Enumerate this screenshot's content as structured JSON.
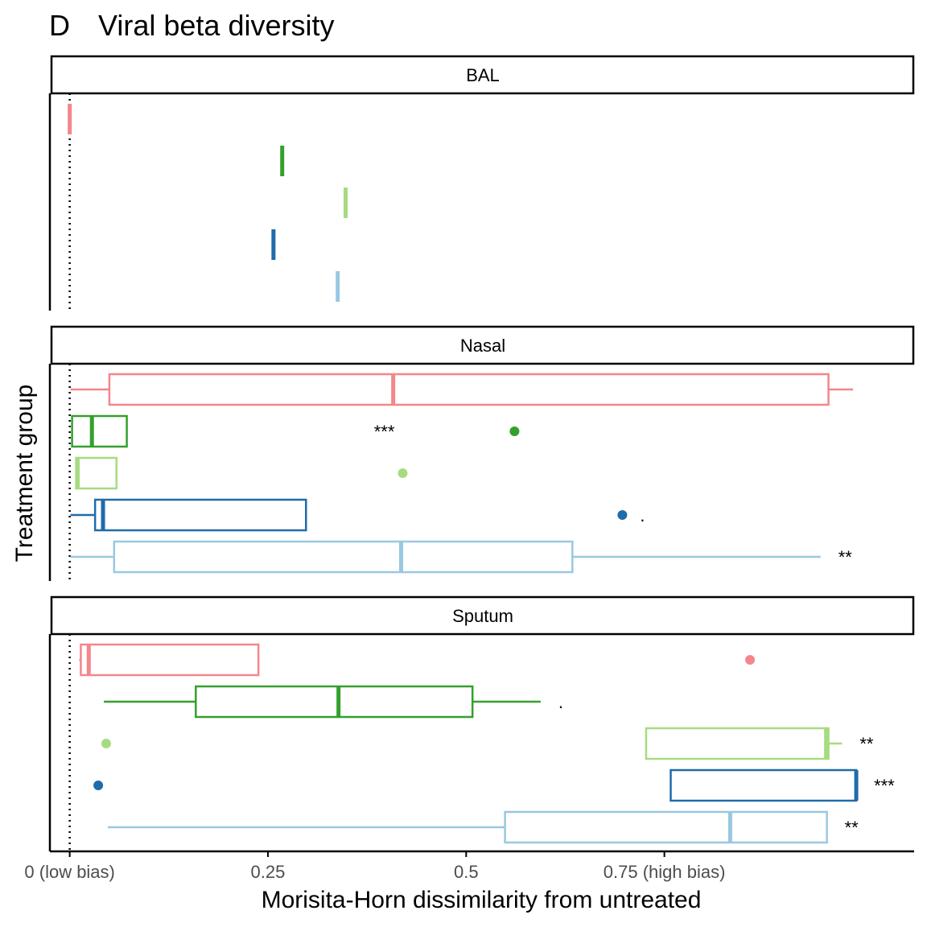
{
  "chart_data": {
    "type": "boxplot",
    "panel_tag": "D",
    "title": "Viral beta diversity",
    "xlabel": "Morisita-Horn dissimilarity from untreated",
    "ylabel": "Treatment group",
    "xlim": [
      -0.025,
      1.065
    ],
    "xticks": [
      {
        "value": 0,
        "label": "0 (low bias)"
      },
      {
        "value": 0.25,
        "label": "0.25"
      },
      {
        "value": 0.5,
        "label": "0.5"
      },
      {
        "value": 0.75,
        "label": "0.75 (high bias)"
      }
    ],
    "reference_line": {
      "x": 0,
      "style": "dotted"
    },
    "grid": false,
    "legend": "none",
    "group_colors": [
      "#f4868c",
      "#33a02c",
      "#a6dc80",
      "#1f6bab",
      "#99c8e0"
    ],
    "panels": [
      {
        "name": "BAL",
        "groups": [
          {
            "color": "#f4868c",
            "median": 0.0
          },
          {
            "color": "#33a02c",
            "median": 0.268
          },
          {
            "color": "#a6dc80",
            "median": 0.348
          },
          {
            "color": "#1f6bab",
            "median": 0.257
          },
          {
            "color": "#99c8e0",
            "median": 0.338
          }
        ]
      },
      {
        "name": "Nasal",
        "groups": [
          {
            "color": "#f4868c",
            "whisker_low": 0.001,
            "q1": 0.05,
            "median": 0.408,
            "q3": 0.957,
            "whisker_high": 0.988,
            "outliers": [],
            "sig": ""
          },
          {
            "color": "#33a02c",
            "whisker_low": 0.003,
            "q1": 0.003,
            "median": 0.028,
            "q3": 0.072,
            "whisker_high": 0.072,
            "outliers": [
              0.561
            ],
            "sig": "***"
          },
          {
            "color": "#a6dc80",
            "whisker_low": 0.008,
            "q1": 0.008,
            "median": 0.01,
            "q3": 0.059,
            "whisker_high": 0.059,
            "outliers": [
              0.42
            ],
            "sig": ""
          },
          {
            "color": "#1f6bab",
            "whisker_low": 0.001,
            "q1": 0.032,
            "median": 0.042,
            "q3": 0.298,
            "whisker_high": 0.298,
            "outliers": [
              0.697
            ],
            "sig": "."
          },
          {
            "color": "#99c8e0",
            "whisker_low": 0.001,
            "q1": 0.056,
            "median": 0.418,
            "q3": 0.634,
            "whisker_high": 0.947,
            "outliers": [],
            "sig": "**"
          }
        ]
      },
      {
        "name": "Sputum",
        "groups": [
          {
            "color": "#f4868c",
            "whisker_low": 0.012,
            "q1": 0.014,
            "median": 0.024,
            "q3": 0.238,
            "whisker_high": 0.238,
            "outliers": [
              0.858
            ],
            "sig": ""
          },
          {
            "color": "#33a02c",
            "whisker_low": 0.043,
            "q1": 0.159,
            "median": 0.339,
            "q3": 0.508,
            "whisker_high": 0.594,
            "outliers": [],
            "sig": "."
          },
          {
            "color": "#a6dc80",
            "whisker_low": 0.727,
            "q1": 0.727,
            "median": 0.954,
            "q3": 0.957,
            "whisker_high": 0.974,
            "outliers": [
              0.046
            ],
            "sig": "**"
          },
          {
            "color": "#1f6bab",
            "whisker_low": 0.758,
            "q1": 0.758,
            "median": 0.992,
            "q3": 0.992,
            "whisker_high": 0.992,
            "outliers": [
              0.036
            ],
            "sig": "***"
          },
          {
            "color": "#99c8e0",
            "whisker_low": 0.048,
            "q1": 0.549,
            "median": 0.833,
            "q3": 0.955,
            "whisker_high": 0.955,
            "outliers": [],
            "sig": "**"
          }
        ]
      }
    ]
  }
}
